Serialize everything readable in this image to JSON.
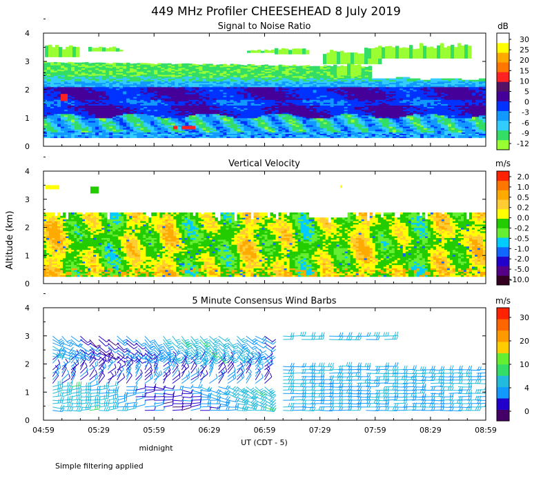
{
  "title": "449 MHz Profiler CHEESEHEAD  8 July 2019",
  "ylabel": "Altitude (km)",
  "xlabel": "UT  (CDT - 5)",
  "midnight_label": "midnight",
  "footnote": "Simple filtering applied",
  "x_ticks": [
    "04:59",
    "05:29",
    "05:59",
    "06:29",
    "06:59",
    "07:29",
    "07:59",
    "08:29",
    "08:59"
  ],
  "y_ticks": [
    "0",
    "1",
    "2",
    "3",
    "4"
  ],
  "colors": {
    "snr": [
      "#99ff33",
      "#33dd66",
      "#33ccff",
      "#1199ff",
      "#0033ff",
      "#440099",
      "#551166",
      "#ff2222",
      "#ff7700",
      "#ffaa00",
      "#ffff00",
      "#ffffff"
    ],
    "vel": [
      "#330022",
      "#550088",
      "#2200cc",
      "#1166ff",
      "#00ccff",
      "#66ee33",
      "#22cc00",
      "#ffff00",
      "#ffcc33",
      "#ffaa00",
      "#ff7700",
      "#ff2200"
    ],
    "wind": [
      "#440066",
      "#2200cc",
      "#1199ff",
      "#22bbdd",
      "#33dd66",
      "#66ee33",
      "#ffcc00",
      "#ff9900",
      "#ff6600",
      "#ff2200"
    ]
  },
  "chart_data": [
    {
      "type": "heatmap",
      "title": "Signal to Noise Ratio",
      "units": "dB",
      "colorbar_labels": [
        "30",
        "25",
        "20",
        "15",
        "10",
        "5",
        "0",
        "-3",
        "-6",
        "-9",
        "-12"
      ],
      "x_range": [
        "04:59",
        "08:59"
      ],
      "ylim": [
        0,
        4
      ],
      "layers": [
        {
          "from_km": 0.3,
          "to_km": 1.1,
          "value_db": -3
        },
        {
          "from_km": 1.1,
          "to_km": 2.1,
          "value_db": 3
        },
        {
          "from_km": 2.1,
          "to_km": 2.5,
          "value_db": -5
        },
        {
          "from_km": 2.5,
          "to_km": 2.8,
          "value_db": -7
        },
        {
          "from_km": 2.8,
          "to_km": 3.3,
          "value_db": -12
        },
        {
          "from_km": 3.3,
          "to_km": 3.6,
          "value_db": -11
        }
      ]
    },
    {
      "type": "heatmap",
      "title": "Vertical Velocity",
      "units": "m/s",
      "colorbar_labels": [
        "2.0",
        "1.0",
        "0.5",
        "0.2",
        "0.0",
        "-0.2",
        "-0.5",
        "-1.0",
        "-2.0",
        "-5.0",
        "-10.0"
      ],
      "x_range": [
        "04:59",
        "08:59"
      ],
      "ylim": [
        0,
        4
      ],
      "data_top_km": 2.5,
      "value_range_ms": [
        -0.5,
        0.5
      ]
    },
    {
      "type": "scatter",
      "title": "5 Minute Consensus Wind Barbs",
      "units": "m/s",
      "colorbar_labels": [
        "30",
        "20",
        "10",
        "4",
        "0"
      ],
      "x_range": [
        "04:59",
        "08:59"
      ],
      "ylim": [
        0,
        4
      ],
      "interval_minutes": 5,
      "gap_after": "07:04",
      "layers": [
        {
          "from_km": 0.3,
          "to_km": 1.2,
          "speed_ms": 8
        },
        {
          "from_km": 1.2,
          "to_km": 2.2,
          "speed_ms": 5
        },
        {
          "from_km": 2.2,
          "to_km": 3.0,
          "speed_ms": 7
        }
      ]
    }
  ]
}
